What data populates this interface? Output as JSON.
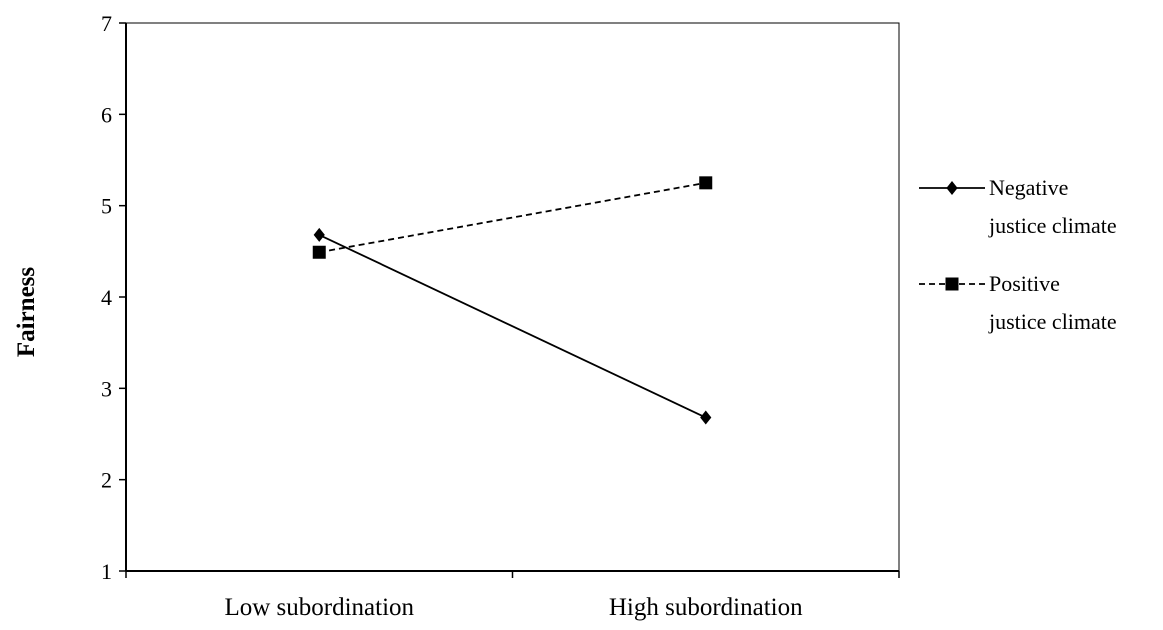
{
  "chart_data": {
    "type": "line",
    "title": "",
    "xlabel": "",
    "ylabel": "Fairness",
    "categories": [
      "Low subordination",
      "High subordination"
    ],
    "ylim": [
      1,
      7
    ],
    "yticks": [
      1,
      2,
      3,
      4,
      5,
      6,
      7
    ],
    "grid": false,
    "legend_position": "right",
    "series": [
      {
        "name_lines": [
          "Negative",
          "justice climate"
        ],
        "values": [
          4.68,
          2.68
        ],
        "marker": "diamond",
        "line_style": "solid",
        "color": "#000000"
      },
      {
        "name_lines": [
          "Positive",
          "justice climate"
        ],
        "values": [
          4.49,
          5.25
        ],
        "marker": "square",
        "line_style": "dashed",
        "color": "#000000"
      }
    ]
  }
}
